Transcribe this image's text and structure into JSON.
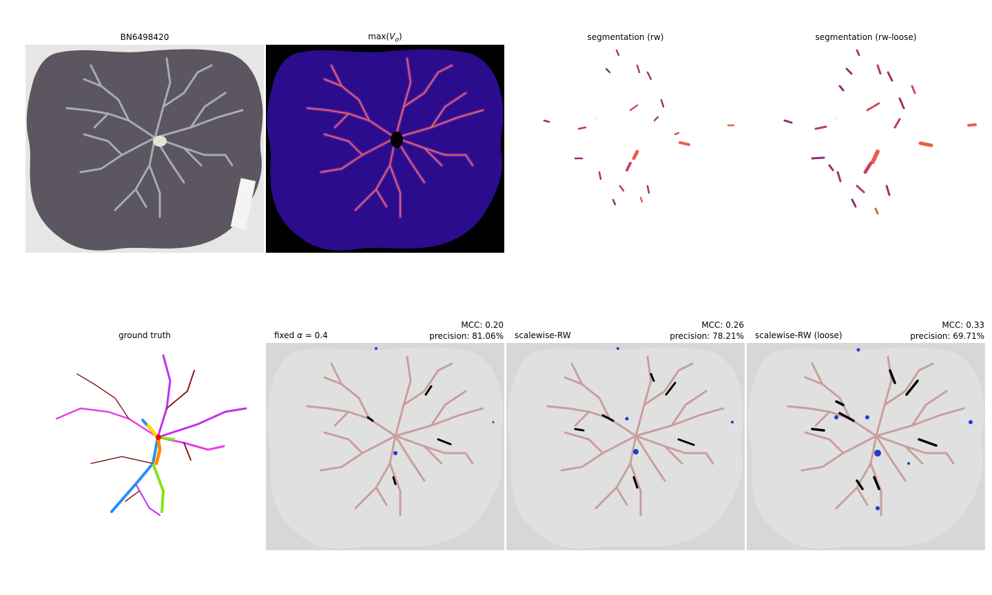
{
  "panels": {
    "photo": {
      "title": "BN6498420"
    },
    "vesselness": {
      "title_prefix": "max(",
      "title_var": "V",
      "title_sub": "σ",
      "title_suffix": ")"
    },
    "seg_rw": {
      "title": "segmentation (rw)"
    },
    "seg_rw_loose": {
      "title": "segmentation (rw-loose)"
    },
    "ground_truth": {
      "title": "ground truth"
    },
    "fixed": {
      "label_prefix": "fixed ",
      "label_symbol": "α",
      "label_suffix": " = 0.4",
      "mcc": "MCC: 0.20",
      "precision": "precision: 81.06%"
    },
    "scalewise": {
      "label": "scalewise-RW",
      "mcc": "MCC: 0.26",
      "precision": "precision: 78.21%"
    },
    "scalewise_loose": {
      "label": "scalewise-RW (loose)",
      "mcc": "MCC: 0.33",
      "precision": "precision: 69.71%"
    }
  },
  "colors": {
    "vessel_tree": "#c99e9b",
    "false_positive": "#1c3fd0",
    "false_negative": "#000000",
    "placenta_mask": "#e0e0e0",
    "background_gray": "#d7d7d7"
  }
}
